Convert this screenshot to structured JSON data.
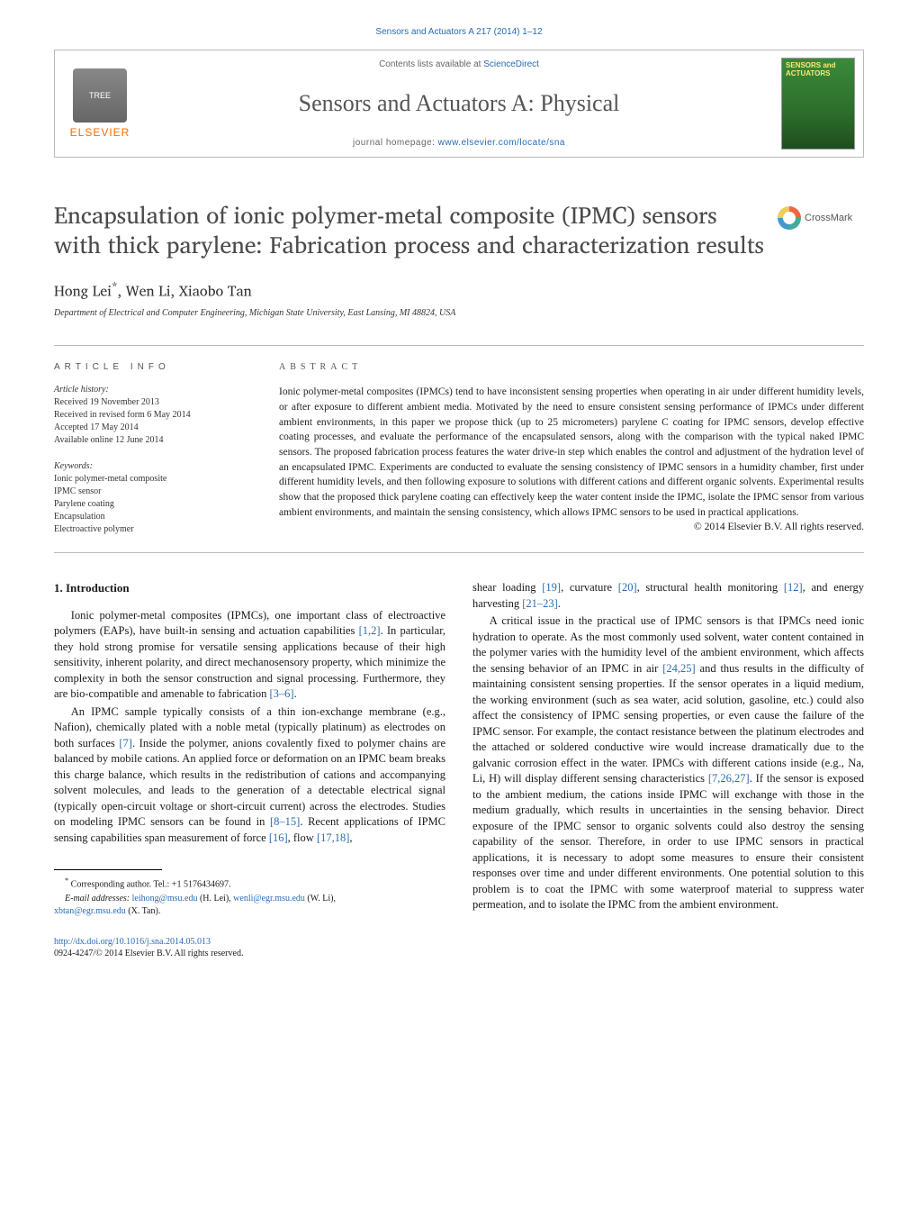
{
  "header": {
    "top_ref": "Sensors and Actuators A 217 (2014) 1–12",
    "contents_line_prefix": "Contents lists available at ",
    "contents_line_link": "ScienceDirect",
    "journal_name": "Sensors and Actuators A: Physical",
    "homepage_prefix": "journal homepage: ",
    "homepage_link": "www.elsevier.com/locate/sna",
    "elsevier_word": "ELSEVIER",
    "cover_title": "SENSORS and ACTUATORS"
  },
  "crossmark_label": "CrossMark",
  "title": "Encapsulation of ionic polymer-metal composite (IPMC) sensors with thick parylene: Fabrication process and characterization results",
  "authors_html": "Hong Lei<sup>*</sup>, Wen Li, Xiaobo Tan",
  "affiliation": "Department of Electrical and Computer Engineering, Michigan State University, East Lansing, MI 48824, USA",
  "article_info": {
    "heading": "ARTICLE INFO",
    "history_head": "Article history:",
    "history_lines": "Received 19 November 2013\nReceived in revised form 6 May 2014\nAccepted 17 May 2014\nAvailable online 12 June 2014",
    "keywords_head": "Keywords:",
    "keywords_lines": "Ionic polymer-metal composite\nIPMC sensor\nParylene coating\nEncapsulation\nElectroactive polymer"
  },
  "abstract": {
    "heading": "ABSTRACT",
    "text": "Ionic polymer-metal composites (IPMCs) tend to have inconsistent sensing properties when operating in air under different humidity levels, or after exposure to different ambient media. Motivated by the need to ensure consistent sensing performance of IPMCs under different ambient environments, in this paper we propose thick (up to 25 micrometers) parylene C coating for IPMC sensors, develop effective coating processes, and evaluate the performance of the encapsulated sensors, along with the comparison with the typical naked IPMC sensors. The proposed fabrication process features the water drive-in step which enables the control and adjustment of the hydration level of an encapsulated IPMC. Experiments are conducted to evaluate the sensing consistency of IPMC sensors in a humidity chamber, first under different humidity levels, and then following exposure to solutions with different cations and different organic solvents. Experimental results show that the proposed thick parylene coating can effectively keep the water content inside the IPMC, isolate the IPMC sensor from various ambient environments, and maintain the sensing consistency, which allows IPMC sensors to be used in practical applications.",
    "copyright": "© 2014 Elsevier B.V. All rights reserved."
  },
  "body": {
    "section_heading": "1.  Introduction",
    "p1_pre": "Ionic polymer-metal composites (IPMCs), one important class of electroactive polymers (EAPs), have built-in sensing and actuation capabilities ",
    "p1_r1": "[1,2]",
    "p1_mid": ". In particular, they hold strong promise for versatile sensing applications because of their high sensitivity, inherent polarity, and direct mechanosensory property, which minimize the complexity in both the sensor construction and signal processing. Furthermore, they are bio-compatible and amenable to fabrication ",
    "p1_r2": "[3–6]",
    "p1_post": ".",
    "p2_pre": "An IPMC sample typically consists of a thin ion-exchange membrane (e.g., Nafion), chemically plated with a noble metal (typically platinum) as electrodes on both surfaces ",
    "p2_r1": "[7]",
    "p2_mid": ". Inside the polymer, anions covalently fixed to polymer chains are balanced by mobile cations. An applied force or deformation on an IPMC beam breaks this charge balance, which results in the redistribution of cations and accompanying solvent molecules, and leads to the generation of a detectable electrical signal (typically open-circuit voltage or short-circuit current) across the electrodes. Studies on modeling IPMC sensors can be found in ",
    "p2_r2": "[8–15]",
    "p2_mid2": ". Recent applications of IPMC sensing capabilities span measurement of force ",
    "p2_r3": "[16]",
    "p2_mid3": ", flow ",
    "p2_r4": "[17,18]",
    "p2_post": ",",
    "p3_pre": "shear loading ",
    "p3_r1": "[19]",
    "p3_mid1": ", curvature ",
    "p3_r2": "[20]",
    "p3_mid2": ", structural health monitoring ",
    "p3_r3": "[12]",
    "p3_mid3": ", and energy harvesting ",
    "p3_r4": "[21–23]",
    "p3_post": ".",
    "p4_pre": "A critical issue in the practical use of IPMC sensors is that IPMCs need ionic hydration to operate. As the most commonly used solvent, water content contained in the polymer varies with the humidity level of the ambient environment, which affects the sensing behavior of an IPMC in air ",
    "p4_r1": "[24,25]",
    "p4_mid1": " and thus results in the difficulty of maintaining consistent sensing properties. If the sensor operates in a liquid medium, the working environment (such as sea water, acid solution, gasoline, etc.) could also affect the consistency of IPMC sensing properties, or even cause the failure of the IPMC sensor. For example, the contact resistance between the platinum electrodes and the attached or soldered conductive wire would increase dramatically due to the galvanic corrosion effect in the water. IPMCs with different cations inside (e.g., Na, Li, H) will display different sensing characteristics ",
    "p4_r2": "[7,26,27]",
    "p4_mid2": ". If the sensor is exposed to the ambient medium, the cations inside IPMC will exchange with those in the medium gradually, which results in uncertainties in the sensing behavior. Direct exposure of the IPMC sensor to organic solvents could also destroy the sensing capability of the sensor. Therefore, in order to use IPMC sensors in practical applications, it is necessary to adopt some measures to ensure their consistent responses over time and under different environments. One potential solution to this problem is to coat the IPMC with some waterproof material to suppress water permeation, and to isolate the IPMC from the ambient environment."
  },
  "footnotes": {
    "corr": "Corresponding author. Tel.: +1 5176434697.",
    "email_label": "E-mail addresses: ",
    "e1": "leihong@msu.edu",
    "n1": " (H. Lei), ",
    "e2": "wenli@egr.msu.edu",
    "n2": " (W. Li), ",
    "e3": "xbtan@egr.msu.edu",
    "n3": " (X. Tan)."
  },
  "doi": {
    "link": "http://dx.doi.org/10.1016/j.sna.2014.05.013",
    "issn_line": "0924-4247/© 2014 Elsevier B.V. All rights reserved."
  },
  "colors": {
    "link": "#2a6bb3",
    "elsevier_orange": "#ff6a00",
    "rule": "#bbbbbb",
    "text": "#1a1a1a"
  }
}
